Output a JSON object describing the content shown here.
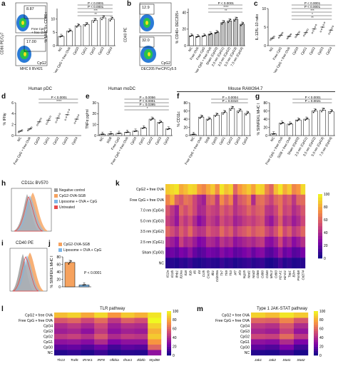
{
  "panels": {
    "a": {
      "label": "a",
      "flow_top": "8.87",
      "flow_bottom": "17.00",
      "flow_top_legend": "Free CpG\n+ free OVA",
      "flow_bottom_legend": "CpG2",
      "flow_xlabel": "MHC II BV421",
      "flow_ylabel": "CD86 PE/Cy7",
      "ylabel": "% MHC II+ CD86+",
      "p_values": [
        "P < 0.0001",
        "P < 0.0001",
        "***",
        "**"
      ]
    },
    "b": {
      "label": "b",
      "flow_top": "12.9",
      "flow_bottom": "32.0",
      "flow_bottom_legend": "CpG2",
      "flow_xlabel": "DEC205 PerCP/Cy5.5",
      "flow_ylabel": "CD40 PE",
      "ylabel": "% CD40+ DEC205+",
      "p_values": [
        "P < 0.0001",
        "****",
        "**"
      ]
    },
    "c": {
      "label": "c",
      "ylabel": "IL-12/IL-10 ratio",
      "p_values": [
        "P < 0.0001",
        "P < 0.0001",
        "***",
        "*",
        "**"
      ]
    },
    "d": {
      "label": "d",
      "section": "Human pDC",
      "ylabel": "% IFNγ",
      "p_values": [
        "P < 0.0001",
        "****"
      ]
    },
    "e": {
      "label": "e",
      "section": "Human moDC",
      "ylabel": "TNFα pg/ml",
      "p_values": [
        "P = 0.0056",
        "P < 0.0001",
        "P = 0.0395",
        "*"
      ]
    },
    "f": {
      "label": "f",
      "section": "Mouse RAW264.7",
      "ylabel": "% CD11c",
      "p_values": [
        "P = 0.0004",
        "P = 0.0310"
      ]
    },
    "g": {
      "label": "g",
      "ylabel": "% SIINFEKL MHC I",
      "p_values": [
        "P < 0.0001",
        "P = 0.0021"
      ]
    },
    "h": {
      "label": "h",
      "title": "CD11c BV570",
      "legend": [
        "Negative control",
        "CpG2-OVA-SGB",
        "Liposome + OVA + CpG",
        "Untreated"
      ]
    },
    "i": {
      "label": "i",
      "title": "CD40 PE"
    },
    "j": {
      "label": "j",
      "legend": [
        "CpG2-OVA-SGB",
        "Liposome + OVA + CpG"
      ],
      "ylabel": "% SIINFEKL MHC I",
      "p_value": "P < 0.0001"
    },
    "k": {
      "label": "k"
    },
    "l": {
      "label": "l",
      "title": "TLR pathway"
    },
    "m": {
      "label": "m",
      "title": "Type 1 JAK-STAT pathway"
    }
  },
  "chart_data": [
    {
      "id": "a",
      "type": "bar",
      "categories": [
        "NC",
        "Free CpG + free OVA",
        "CpG0",
        "CpG1",
        "CpG2",
        "CpG3",
        "CpG4"
      ],
      "values": [
        3.5,
        5.5,
        7.5,
        8,
        9.5,
        10.5,
        10
      ],
      "ylim": [
        0,
        14
      ],
      "yticks": [
        "0",
        "5",
        "10"
      ],
      "ylabel": "% MHC II+ CD86+"
    },
    {
      "id": "b",
      "type": "bar",
      "categories": [
        "NC",
        "Free OVA",
        "Free CpG",
        "Free CpG + free OVA",
        "Sham (CpG0)",
        "2.5 nm (CpG1)",
        "3.5 nm (CpG2)",
        "5.0 nm (CpG3)",
        "7.0 nm (CpG4)"
      ],
      "values": [
        12,
        11,
        12,
        14,
        16,
        28,
        30,
        32,
        26
      ],
      "ylim": [
        0,
        45
      ],
      "yticks": [
        "0",
        "20",
        "40"
      ],
      "ylabel": "% CD40+ DEC205+"
    },
    {
      "id": "c",
      "type": "scatter",
      "categories": [
        "NC",
        "Free CpG",
        "Free CpG + free OVA",
        "CpG0",
        "CpG1",
        "CpG2",
        "CpG3",
        "CpG4"
      ],
      "values": [
        2.0,
        2.8,
        2.5,
        3.0,
        3.5,
        4.5,
        5.0,
        4.2
      ],
      "ylim": [
        0,
        10
      ],
      "yticks": [
        "0",
        "5",
        "10"
      ],
      "ylabel": "IL-12/IL-10 ratio"
    },
    {
      "id": "d",
      "type": "scatter",
      "categories": [
        "NC",
        "Free CpG + free OVA",
        "CpG0",
        "CpG1",
        "CpG2",
        "CpG3",
        "CpG4"
      ],
      "values": [
        0.8,
        1.2,
        2.5,
        2.8,
        3.2,
        3.8,
        3.0
      ],
      "ylim": [
        0,
        6
      ],
      "yticks": [
        "0",
        "2",
        "4",
        "6"
      ],
      "ylabel": "% IFNγ"
    },
    {
      "id": "e",
      "type": "bar",
      "categories": [
        "NC",
        "SGB",
        "Free CpG",
        "Free CpG + free OVA",
        "CpG0",
        "CpG1",
        "CpG2",
        "CpG3",
        "CpG4"
      ],
      "values": [
        1.2,
        1.5,
        2.0,
        3.0,
        4.0,
        7.0,
        15,
        12,
        6.0
      ],
      "ylim": [
        0,
        30
      ],
      "yticks": [
        "0",
        "10",
        "20",
        "30"
      ],
      "ylabel": "TNFα pg/ml"
    },
    {
      "id": "f",
      "type": "bar",
      "categories": [
        "NC",
        "Free CpG + free OVA",
        "SGB",
        "CpG0",
        "CpG1",
        "CpG2",
        "CpG3",
        "CpG4"
      ],
      "values": [
        3,
        45,
        40,
        50,
        56,
        66,
        60,
        54
      ],
      "ylim": [
        0,
        80
      ],
      "yticks": [
        "0",
        "20",
        "40",
        "60",
        "80"
      ],
      "ylabel": "% CD11c"
    },
    {
      "id": "g",
      "type": "bar",
      "categories": [
        "NC",
        "Free CpG + free OVA",
        "SGB + free OVA",
        "Sham (CpG0)",
        "2.5 nm (CpG1)",
        "3.5 nm (CpG2)",
        "5.0 nm (CpG3)",
        "7.0 nm (CpG4)"
      ],
      "values": [
        4,
        30,
        28,
        38,
        40,
        60,
        62,
        58
      ],
      "ylim": [
        0,
        80
      ],
      "yticks": [
        "0",
        "20",
        "40",
        "60",
        "80"
      ],
      "ylabel": "% SIINFEKL MHC I"
    },
    {
      "id": "j",
      "type": "bar",
      "categories": [
        "CpG2-OVA-SGB",
        "Liposome + OVA + CpG"
      ],
      "values": [
        65,
        5
      ],
      "ylim": [
        0,
        80
      ],
      "yticks": [
        "0",
        "20",
        "40",
        "60",
        "80"
      ],
      "ylabel": "% SIINFEKL MHC I"
    },
    {
      "id": "k",
      "type": "heatmap",
      "rows": [
        "CpG2 + free OVA",
        "Free CpG + free OVA",
        "7.0 nm (CpG4)",
        "5.0 nm (CpG3)",
        "3.5 nm (CpG2)",
        "2.5 nm (CpG1)",
        "Sham (CpG0)",
        "NC"
      ],
      "cols": [
        "Il12a",
        "Il12b",
        "Ifnb1",
        "Il10ra",
        "Il18",
        "Il1b",
        "Il6",
        "Il4",
        "Ccl5",
        "Cxcl9",
        "Ifit1",
        "Cd209a",
        "Tlr7",
        "Tlr9",
        "Tlr3",
        "Irf7",
        "Irf3",
        "Isg15",
        "Nod1",
        "Nod2",
        "Cd86",
        "Cd80",
        "Cd40",
        "Mhc2",
        "Cd83",
        "H2-K1",
        "H2-D1",
        "Tap1",
        "B2m",
        "Psmb8",
        "Cd274"
      ],
      "values": [
        [
          88,
          92,
          95,
          80,
          85,
          92,
          90,
          75,
          70,
          80,
          88,
          72,
          95,
          85,
          90,
          60,
          75,
          82,
          88,
          78,
          92,
          90,
          70,
          60,
          85,
          95,
          80,
          88,
          70,
          75,
          92
        ],
        [
          70,
          82,
          60,
          55,
          65,
          62,
          50,
          40,
          35,
          58,
          62,
          45,
          72,
          60,
          70,
          42,
          55,
          60,
          68,
          40,
          62,
          64,
          55,
          48,
          60,
          65,
          52,
          58,
          44,
          60,
          62
        ],
        [
          55,
          45,
          35,
          60,
          52,
          60,
          50,
          38,
          40,
          52,
          48,
          45,
          58,
          50,
          55,
          42,
          48,
          52,
          60,
          52,
          58,
          60,
          44,
          42,
          50,
          64,
          48,
          52,
          40,
          46,
          55
        ],
        [
          48,
          42,
          32,
          52,
          44,
          52,
          40,
          28,
          34,
          48,
          44,
          38,
          52,
          45,
          48,
          36,
          40,
          46,
          50,
          46,
          52,
          55,
          38,
          32,
          44,
          58,
          40,
          45,
          34,
          40,
          50
        ],
        [
          60,
          52,
          44,
          58,
          50,
          62,
          48,
          42,
          44,
          56,
          50,
          48,
          62,
          52,
          58,
          44,
          52,
          56,
          62,
          54,
          60,
          62,
          50,
          44,
          54,
          68,
          50,
          58,
          44,
          50,
          60
        ],
        [
          40,
          35,
          28,
          48,
          38,
          42,
          34,
          25,
          28,
          40,
          38,
          32,
          44,
          38,
          42,
          30,
          34,
          38,
          42,
          38,
          44,
          46,
          30,
          28,
          36,
          50,
          34,
          40,
          28,
          34,
          42
        ],
        [
          20,
          22,
          18,
          25,
          22,
          30,
          20,
          15,
          18,
          24,
          22,
          20,
          28,
          22,
          25,
          18,
          20,
          24,
          28,
          20,
          26,
          28,
          18,
          16,
          22,
          32,
          20,
          24,
          16,
          18,
          24
        ],
        [
          5,
          6,
          4,
          8,
          6,
          10,
          5,
          4,
          6,
          8,
          6,
          5,
          10,
          6,
          8,
          4,
          6,
          8,
          10,
          6,
          8,
          10,
          4,
          3,
          6,
          12,
          5,
          8,
          4,
          5,
          6
        ]
      ],
      "colorbar": [
        "0",
        "20",
        "40",
        "60",
        "80",
        "100"
      ]
    },
    {
      "id": "l",
      "type": "heatmap",
      "title": "TLR pathway",
      "rows": [
        "CpG2 + free OVA",
        "Free CpG + free OVA",
        "CpG4",
        "CpG3",
        "CpG2",
        "CpG1",
        "CpG0",
        "NC"
      ],
      "cols": [
        "Tlr13",
        "Traf6",
        "IRAK1",
        "IRF8",
        "nfkbia",
        "Ifnar1",
        "Ikbkb",
        "Myd88"
      ],
      "values": [
        [
          85,
          90,
          80,
          92,
          75,
          88,
          82,
          95
        ],
        [
          55,
          60,
          50,
          62,
          45,
          58,
          52,
          100
        ],
        [
          40,
          45,
          38,
          50,
          35,
          42,
          40,
          90
        ],
        [
          35,
          38,
          30,
          45,
          30,
          36,
          34,
          82
        ],
        [
          45,
          48,
          42,
          55,
          40,
          46,
          44,
          88
        ],
        [
          30,
          32,
          28,
          40,
          25,
          30,
          30,
          75
        ],
        [
          18,
          20,
          15,
          22,
          12,
          18,
          16,
          60
        ],
        [
          5,
          8,
          4,
          10,
          3,
          6,
          5,
          30
        ]
      ],
      "colorbar": [
        "0",
        "20",
        "40",
        "60",
        "80",
        "100"
      ]
    },
    {
      "id": "m",
      "type": "heatmap",
      "title": "Type 1 JAK-STAT pathway",
      "rows": [
        "CpG2 + free OVA",
        "Free CpG + free OVA",
        "CpG4",
        "CpG3",
        "CpG2",
        "CpG1",
        "CpG0",
        "NC"
      ],
      "cols": [
        "Jak1",
        "Jak2",
        "Stat1",
        "Stat2"
      ],
      "values": [
        [
          90,
          85,
          95,
          88
        ],
        [
          60,
          58,
          70,
          55
        ],
        [
          45,
          42,
          55,
          40
        ],
        [
          38,
          35,
          48,
          32
        ],
        [
          50,
          48,
          62,
          45
        ],
        [
          30,
          28,
          40,
          25
        ],
        [
          18,
          15,
          25,
          12
        ],
        [
          5,
          4,
          10,
          3
        ]
      ],
      "colorbar": [
        "0",
        "20",
        "40",
        "60",
        "80",
        "100"
      ]
    }
  ]
}
